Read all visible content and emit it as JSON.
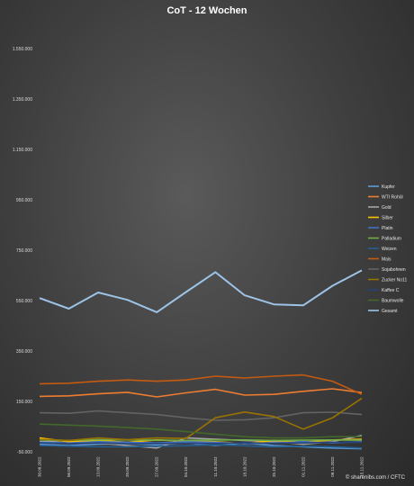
{
  "chart_data": {
    "type": "line",
    "title": "CoT - 12 Wochen",
    "xlabel": "",
    "ylabel": "",
    "ylim": [
      -50000,
      1650000
    ],
    "y_ticks": [
      "-50.000",
      "150.000",
      "350.000",
      "550.000",
      "750.000",
      "950.000",
      "1.150.000",
      "1.350.000",
      "1.550.000"
    ],
    "y_tick_values": [
      -50000,
      150000,
      350000,
      550000,
      750000,
      950000,
      1150000,
      1350000,
      1550000
    ],
    "categories": [
      "30.08.2022",
      "06.09.2022",
      "13.09.2022",
      "20.09.2022",
      "27.09.2022",
      "04.10.2022",
      "11.10.2022",
      "18.10.2022",
      "25.10.2022",
      "01.11.2022",
      "08.11.2022",
      "15.11.2022"
    ],
    "grid": false,
    "legend_position": "right",
    "series": [
      {
        "name": "Kupfer",
        "color": "#5b9bd5",
        "values": [
          -20000,
          -25000,
          -20000,
          -18000,
          -22000,
          -15000,
          -25000,
          -15000,
          -25000,
          -30000,
          -35000,
          -38000
        ]
      },
      {
        "name": "WTI Rohöl",
        "color": "#ed7d31",
        "values": [
          170000,
          172000,
          180000,
          186000,
          168000,
          184000,
          198000,
          175000,
          178000,
          190000,
          200000,
          185000
        ]
      },
      {
        "name": "Gold",
        "color": "#a5a5a5",
        "values": [
          -10000,
          -5000,
          -15000,
          -25000,
          -35000,
          5000,
          0,
          -5000,
          -10000,
          -20000,
          -10000,
          15000
        ]
      },
      {
        "name": "Silber",
        "color": "#ffc000",
        "values": [
          5000,
          -10000,
          -5000,
          -12000,
          -3000,
          -8000,
          -10000,
          -18000,
          -5000,
          -12000,
          -3000,
          0
        ]
      },
      {
        "name": "Platin",
        "color": "#4472c4",
        "values": [
          -12000,
          -15000,
          -10000,
          -12000,
          -15000,
          -10000,
          -12000,
          -18000,
          -15000,
          -10000,
          -15000,
          -10000
        ]
      },
      {
        "name": "Palladium",
        "color": "#70ad47",
        "values": [
          -3000,
          -5000,
          -2000,
          -3000,
          -4000,
          -5000,
          -3000,
          -3000,
          -5000,
          -4000,
          -3000,
          -4000
        ]
      },
      {
        "name": "Weizen",
        "color": "#255e91",
        "values": [
          -25000,
          -28000,
          -30000,
          -30000,
          -28000,
          -26000,
          -22000,
          -26000,
          -30000,
          -28000,
          -30000,
          -35000
        ]
      },
      {
        "name": "Mais",
        "color": "#c55a11",
        "values": [
          220000,
          222000,
          230000,
          235000,
          230000,
          235000,
          250000,
          243000,
          250000,
          255000,
          230000,
          178000
        ]
      },
      {
        "name": "Sojabohnen",
        "color": "#636363",
        "values": [
          105000,
          103000,
          112000,
          105000,
          98000,
          85000,
          75000,
          77000,
          85000,
          105000,
          107000,
          98000
        ]
      },
      {
        "name": "Zucker No11",
        "color": "#997300",
        "values": [
          0,
          -5000,
          5000,
          -2000,
          5000,
          3000,
          85000,
          108000,
          90000,
          40000,
          85000,
          162000
        ]
      },
      {
        "name": "Kaffee C",
        "color": "#264478",
        "values": [
          -15000,
          -18000,
          -15000,
          -18000,
          -17000,
          -16000,
          -17000,
          -14000,
          -16000,
          -15000,
          -13000,
          -12000
        ]
      },
      {
        "name": "Baumwolle",
        "color": "#43682b",
        "values": [
          60000,
          56000,
          52000,
          46000,
          40000,
          30000,
          20000,
          10000,
          5000,
          5000,
          10000,
          10000
        ]
      },
      {
        "name": "Gesamt",
        "color": "#9dc3e6",
        "values": [
          560000,
          518000,
          582000,
          553000,
          504000,
          584000,
          663000,
          571000,
          535000,
          531000,
          609000,
          670000
        ]
      }
    ]
  },
  "credit": "© sharenibs.com / CFTC"
}
